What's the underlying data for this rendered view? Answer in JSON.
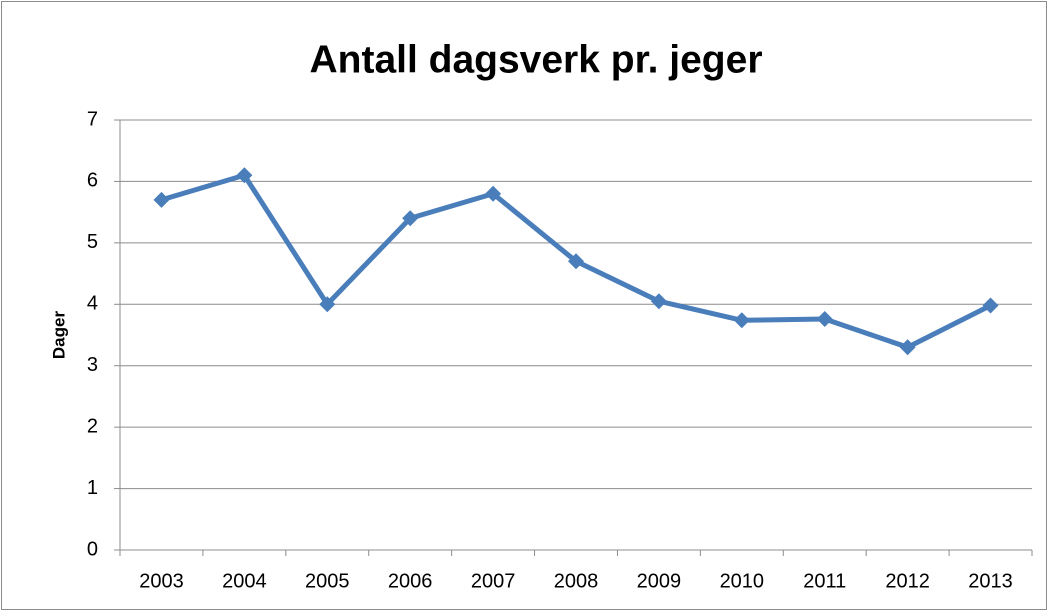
{
  "chart_data": {
    "type": "line",
    "title": "Antall dagsverk pr. jeger",
    "y_label": "Dager",
    "categories": [
      "2003",
      "2004",
      "2005",
      "2006",
      "2007",
      "2008",
      "2009",
      "2010",
      "2011",
      "2012",
      "2013"
    ],
    "series": [
      {
        "name": "Dager",
        "color": "#4a7ebb",
        "values": [
          5.7,
          6.1,
          4.0,
          5.4,
          5.8,
          4.7,
          4.05,
          3.74,
          3.76,
          3.3,
          3.98
        ]
      }
    ],
    "ylim": [
      0,
      7
    ],
    "yticks": [
      0,
      1,
      2,
      3,
      4,
      5,
      6,
      7
    ],
    "grid": true
  }
}
